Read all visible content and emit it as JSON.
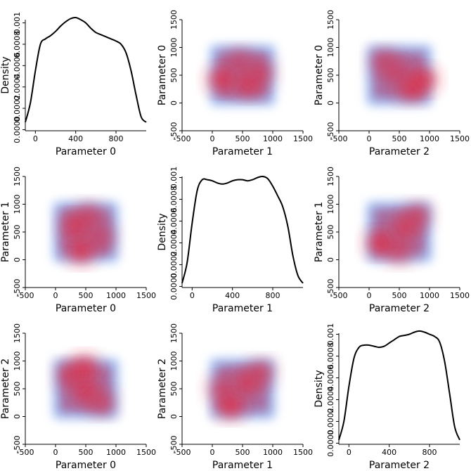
{
  "chart_data": [
    {
      "type": "line",
      "position": "row1-col1",
      "xlabel": "Parameter 0",
      "ylabel": "Density",
      "xlim": [
        -100,
        1100
      ],
      "ylim": [
        -1e-05,
        0.00103
      ],
      "xticks": [
        0,
        400,
        800
      ],
      "yticks": [
        0.0,
        0.0002,
        0.0004,
        0.0006,
        0.0008,
        0.001
      ],
      "ytick_labels": [
        "0.0000",
        "0.0002",
        "0.0004",
        "0.0006",
        "0.0008",
        "0.001"
      ],
      "series": [
        {
          "x": [
            -100,
            -50,
            0,
            50,
            100,
            150,
            200,
            250,
            300,
            350,
            400,
            450,
            500,
            550,
            600,
            650,
            700,
            750,
            800,
            850,
            900,
            950,
            1000,
            1050,
            1100
          ],
          "y": [
            7e-05,
            0.00025,
            0.00055,
            0.0008,
            0.00085,
            0.00088,
            0.00092,
            0.00097,
            0.00101,
            0.00104,
            0.00105,
            0.00103,
            0.001,
            0.00095,
            0.00091,
            0.00089,
            0.00087,
            0.00085,
            0.00083,
            0.0008,
            0.00072,
            0.00055,
            0.00032,
            0.00012,
            7e-05
          ]
        }
      ]
    },
    {
      "type": "heatmap",
      "position": "row1-col2",
      "xlabel": "Parameter 1",
      "ylabel": "Parameter 0",
      "xlim": [
        -500,
        1500
      ],
      "ylim": [
        -500,
        1500
      ],
      "xticks": [
        -500,
        0,
        500,
        1000,
        1500
      ],
      "yticks": [
        -500,
        0,
        500,
        1000,
        1500
      ],
      "hotspots": [
        [
          150,
          420,
          1.0
        ],
        [
          600,
          330,
          0.85
        ],
        [
          800,
          550,
          0.55
        ],
        [
          450,
          750,
          0.4
        ]
      ]
    },
    {
      "type": "heatmap",
      "position": "row1-col3",
      "xlabel": "Parameter 2",
      "ylabel": "Parameter 0",
      "xlim": [
        -500,
        1500
      ],
      "ylim": [
        -500,
        1500
      ],
      "xticks": [
        -500,
        0,
        500,
        1000,
        1500
      ],
      "yticks": [
        -500,
        0,
        500,
        1000,
        1500
      ],
      "hotspots": [
        [
          900,
          420,
          1.0
        ],
        [
          700,
          250,
          0.8
        ],
        [
          450,
          550,
          0.55
        ],
        [
          250,
          750,
          0.4
        ]
      ]
    },
    {
      "type": "heatmap",
      "position": "row2-col1",
      "xlabel": "Parameter 0",
      "ylabel": "Parameter 1",
      "xlim": [
        -500,
        1500
      ],
      "ylim": [
        -500,
        1500
      ],
      "xticks": [
        -500,
        0,
        500,
        1000,
        1500
      ],
      "yticks": [
        -500,
        0,
        500,
        1000,
        1500
      ],
      "hotspots": [
        [
          420,
          150,
          1.0
        ],
        [
          330,
          600,
          0.85
        ],
        [
          550,
          800,
          0.5
        ],
        [
          750,
          400,
          0.45
        ]
      ]
    },
    {
      "type": "line",
      "position": "row2-col2",
      "xlabel": "Parameter 1",
      "ylabel": "Density",
      "xlim": [
        -100,
        1100
      ],
      "ylim": [
        -1e-05,
        0.00101
      ],
      "xticks": [
        0,
        400,
        800
      ],
      "yticks": [
        0.0,
        0.0002,
        0.0004,
        0.0006,
        0.0008,
        0.001
      ],
      "ytick_labels": [
        "0.0000",
        "0.0002",
        "0.0004",
        "0.0006",
        "0.0008",
        "0.001"
      ],
      "series": [
        {
          "x": [
            -100,
            -50,
            0,
            50,
            100,
            150,
            200,
            250,
            300,
            350,
            400,
            450,
            500,
            550,
            600,
            650,
            700,
            750,
            800,
            850,
            900,
            950,
            1000,
            1050,
            1100
          ],
          "y": [
            3e-05,
            0.00022,
            0.00058,
            0.00088,
            0.00098,
            0.00098,
            0.00097,
            0.00095,
            0.00094,
            0.00095,
            0.00097,
            0.00098,
            0.00098,
            0.00097,
            0.00098,
            0.001,
            0.00101,
            0.00099,
            0.00092,
            0.00083,
            0.00073,
            0.00055,
            0.00028,
            0.0001,
            3e-05
          ]
        }
      ]
    },
    {
      "type": "heatmap",
      "position": "row2-col3",
      "xlabel": "Parameter 2",
      "ylabel": "Parameter 1",
      "xlim": [
        -500,
        1500
      ],
      "ylim": [
        -500,
        1500
      ],
      "xticks": [
        -500,
        0,
        500,
        1000,
        1500
      ],
      "yticks": [
        -500,
        0,
        500,
        1000,
        1500
      ],
      "hotspots": [
        [
          180,
          300,
          1.0
        ],
        [
          600,
          580,
          0.8
        ],
        [
          500,
          150,
          0.6
        ],
        [
          800,
          800,
          0.5
        ]
      ]
    },
    {
      "type": "heatmap",
      "position": "row3-col1",
      "xlabel": "Parameter 0",
      "ylabel": "Parameter 2",
      "xlim": [
        -500,
        1500
      ],
      "ylim": [
        -500,
        1500
      ],
      "xticks": [
        -500,
        0,
        500,
        1000,
        1500
      ],
      "yticks": [
        -500,
        0,
        500,
        1000,
        1500
      ],
      "hotspots": [
        [
          480,
          880,
          1.0
        ],
        [
          500,
          450,
          0.85
        ],
        [
          250,
          750,
          0.6
        ],
        [
          750,
          250,
          0.5
        ]
      ]
    },
    {
      "type": "heatmap",
      "position": "row3-col2",
      "xlabel": "Parameter 1",
      "ylabel": "Parameter 2",
      "xlim": [
        -500,
        1500
      ],
      "ylim": [
        -500,
        1500
      ],
      "xticks": [
        -500,
        0,
        500,
        1000,
        1500
      ],
      "yticks": [
        -500,
        0,
        500,
        1000,
        1500
      ],
      "hotspots": [
        [
          300,
          180,
          1.0
        ],
        [
          580,
          600,
          0.8
        ],
        [
          150,
          500,
          0.6
        ],
        [
          800,
          800,
          0.5
        ]
      ]
    },
    {
      "type": "line",
      "position": "row3-col3",
      "xlabel": "Parameter 2",
      "ylabel": "Density",
      "xlim": [
        -100,
        1100
      ],
      "ylim": [
        -1e-05,
        0.00101
      ],
      "xticks": [
        0,
        400,
        800
      ],
      "yticks": [
        0.0,
        0.0002,
        0.0004,
        0.0006,
        0.0008,
        0.001
      ],
      "ytick_labels": [
        "0.0000",
        "0.0002",
        "0.0004",
        "0.0006",
        "0.0008",
        "0.001"
      ],
      "series": [
        {
          "x": [
            -100,
            -50,
            0,
            50,
            100,
            150,
            200,
            250,
            300,
            350,
            400,
            450,
            500,
            550,
            600,
            650,
            700,
            750,
            800,
            850,
            900,
            950,
            1000,
            1050,
            1100
          ],
          "y": [
            3e-05,
            0.0002,
            0.00052,
            0.00078,
            0.00088,
            0.0009,
            0.0009,
            0.00089,
            0.00088,
            0.00089,
            0.00092,
            0.00095,
            0.00098,
            0.00099,
            0.001,
            0.00102,
            0.00103,
            0.00102,
            0.001,
            0.00098,
            0.00093,
            0.00075,
            0.00045,
            0.00015,
            3e-05
          ]
        }
      ]
    }
  ],
  "colors": {
    "kde_line": "#000000",
    "density_low": "#5b8be6",
    "density_high": "#e8283a"
  }
}
